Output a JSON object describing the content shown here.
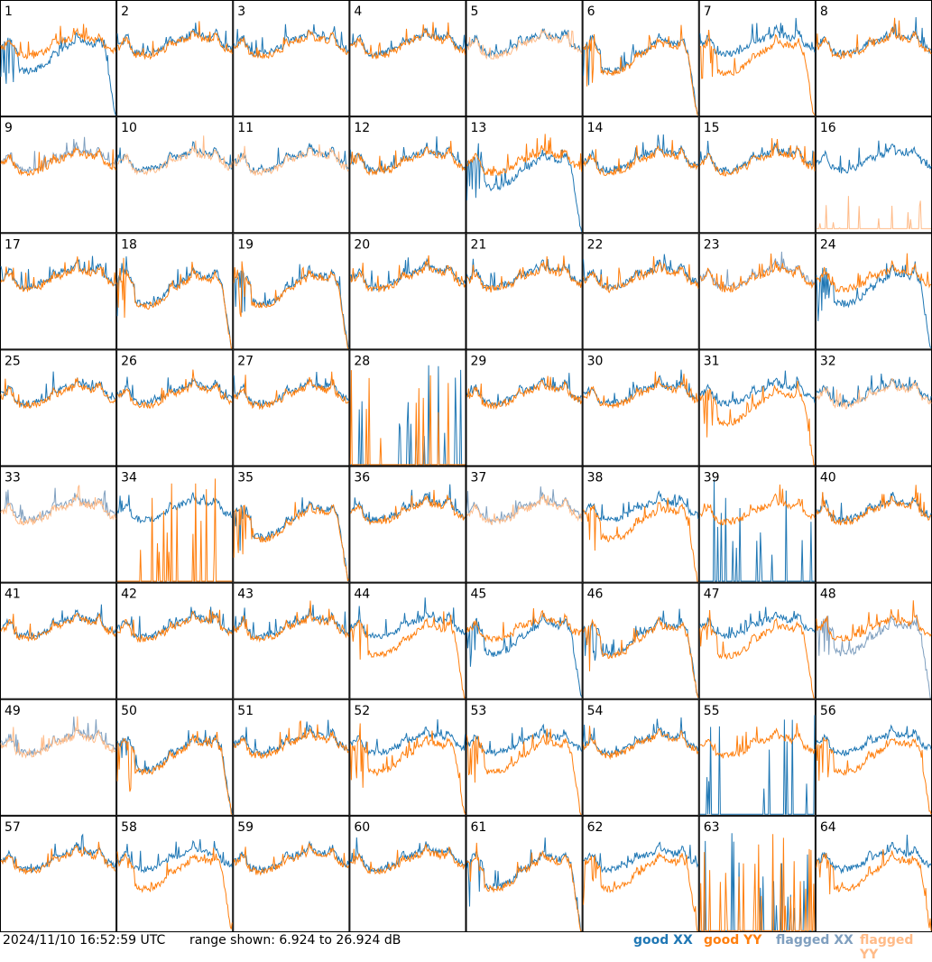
{
  "chart_data": {
    "type": "line",
    "layout": "8x8 small-multiples",
    "panel_labels": [
      "1",
      "2",
      "3",
      "4",
      "5",
      "6",
      "7",
      "8",
      "9",
      "10",
      "11",
      "12",
      "13",
      "14",
      "15",
      "16",
      "17",
      "18",
      "19",
      "20",
      "21",
      "22",
      "23",
      "24",
      "25",
      "26",
      "27",
      "28",
      "29",
      "30",
      "31",
      "32",
      "33",
      "34",
      "35",
      "36",
      "37",
      "38",
      "39",
      "40",
      "41",
      "42",
      "43",
      "44",
      "45",
      "46",
      "47",
      "48",
      "49",
      "50",
      "51",
      "52",
      "53",
      "54",
      "55",
      "56",
      "57",
      "58",
      "59",
      "60",
      "61",
      "62",
      "63",
      "64"
    ],
    "ylim": [
      6.924,
      26.924
    ],
    "series_styles": {
      "good_xx": "#1f77b4",
      "good_yy": "#ff7f0e",
      "flagged_xx": "#7f9fbf",
      "flagged_yy": "#ffbb88"
    },
    "panel_status": {
      "xx_flagged": [
        9,
        23,
        33,
        37,
        48,
        49
      ],
      "yy_flagged": [
        5,
        10,
        11,
        16,
        32,
        33,
        37,
        49
      ],
      "yy_dropout": [
        6,
        7,
        18,
        19,
        31,
        35,
        38,
        44,
        46,
        47,
        50,
        52,
        53,
        56,
        58,
        61,
        62,
        64
      ],
      "xx_dropout": [
        1,
        6,
        13,
        18,
        19,
        24,
        35,
        45,
        46,
        48,
        50,
        55,
        61
      ],
      "xx_spikes_only": [
        28,
        39,
        55,
        63
      ],
      "yy_spikes_only": [
        28,
        34,
        63
      ]
    }
  },
  "footer": {
    "timestamp": "2024/11/10 16:52:59 UTC",
    "range_text": "range shown: 6.924 to 26.924 dB",
    "legend": {
      "good_xx": "good XX",
      "good_yy": "good YY",
      "flagged_xx": "flagged XX",
      "flagged_yy": "flagged YY"
    }
  }
}
